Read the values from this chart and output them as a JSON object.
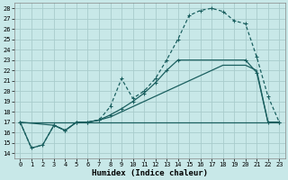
{
  "xlabel": "Humidex (Indice chaleur)",
  "background_color": "#c8e8e8",
  "grid_color": "#a8cccc",
  "line_color": "#1a5f5f",
  "xlim": [
    -0.5,
    23.5
  ],
  "ylim": [
    13.5,
    28.5
  ],
  "xticks": [
    0,
    1,
    2,
    3,
    4,
    5,
    6,
    7,
    8,
    9,
    10,
    11,
    12,
    13,
    14,
    15,
    16,
    17,
    18,
    19,
    20,
    21,
    22,
    23
  ],
  "yticks": [
    14,
    15,
    16,
    17,
    18,
    19,
    20,
    21,
    22,
    23,
    24,
    25,
    26,
    27,
    28
  ],
  "curve1_x": [
    0,
    1,
    2,
    3,
    4,
    5,
    6,
    7,
    8,
    9,
    10,
    11,
    12,
    13,
    14,
    15,
    16,
    17,
    18,
    19,
    20,
    21,
    22,
    23
  ],
  "curve1_y": [
    17,
    14.5,
    14.8,
    16.7,
    16.2,
    17.0,
    17.0,
    17.2,
    18.5,
    21.2,
    19.3,
    20.0,
    21.2,
    23.0,
    25.0,
    27.3,
    27.8,
    28.0,
    27.7,
    26.8,
    26.5,
    23.3,
    19.5,
    17.0
  ],
  "curve2_x": [
    0,
    3,
    4,
    5,
    6,
    7,
    8,
    9,
    10,
    11,
    12,
    13,
    14,
    20,
    21,
    22,
    23
  ],
  "curve2_y": [
    17,
    16.7,
    16.2,
    17.0,
    17.0,
    17.2,
    17.7,
    18.3,
    19.0,
    19.8,
    20.8,
    22.0,
    23.0,
    23.0,
    21.8,
    17.0,
    17.0
  ],
  "curve3_x": [
    0,
    23
  ],
  "curve3_y": [
    17,
    17
  ],
  "curve4_x": [
    0,
    1,
    2,
    3,
    4,
    5,
    6,
    7,
    8,
    9,
    10,
    11,
    12,
    13,
    14,
    15,
    16,
    17,
    18,
    19,
    20,
    21,
    22,
    23
  ],
  "curve4_y": [
    17,
    14.5,
    14.8,
    16.7,
    16.2,
    17.0,
    17.0,
    17.2,
    17.5,
    18.0,
    18.5,
    19.0,
    19.5,
    20.0,
    20.5,
    21.0,
    21.5,
    22.0,
    22.5,
    22.5,
    22.5,
    22.0,
    17.0,
    17.0
  ]
}
